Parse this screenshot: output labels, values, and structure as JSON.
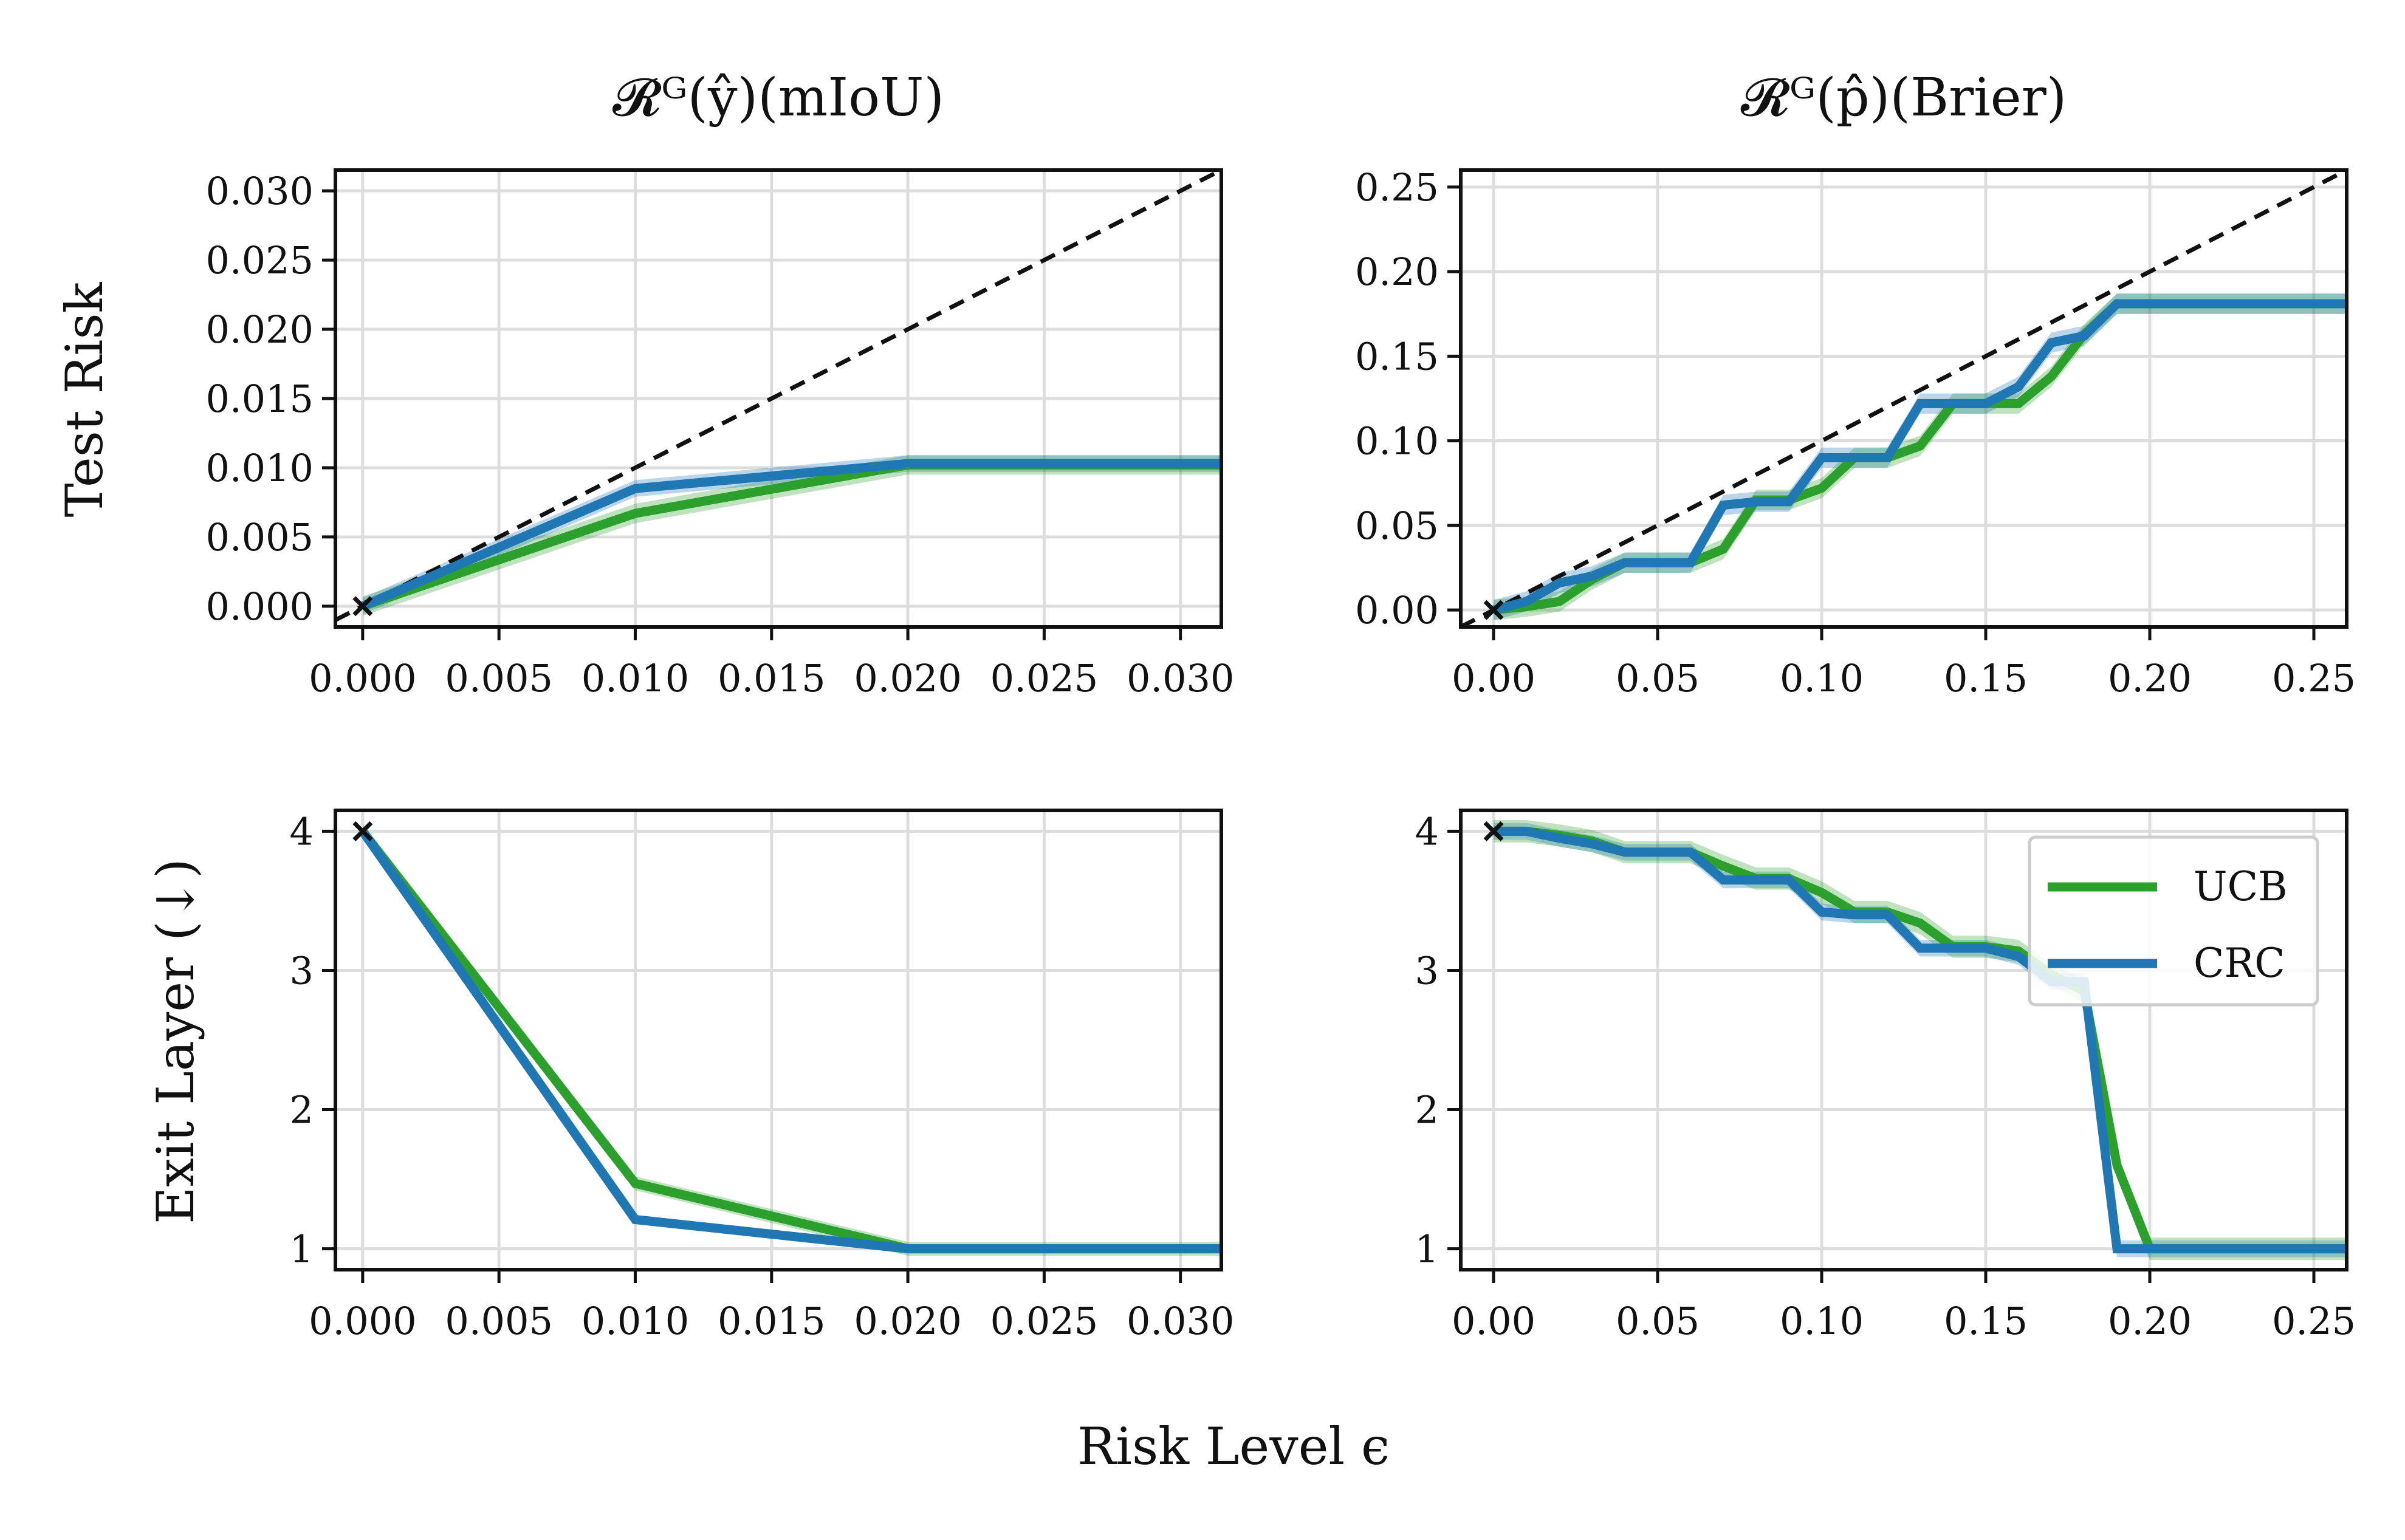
{
  "figure": {
    "ylabel_top": "Test Risk",
    "ylabel_bottom": "Exit Layer (↓)",
    "xlabel": "Risk Level ϵ"
  },
  "legend": {
    "placement": "top-right of bottom-right panel",
    "entries": [
      {
        "label": "UCB",
        "color": "#2ca02c"
      },
      {
        "label": "CRC",
        "color": "#1f77b4"
      }
    ]
  },
  "chart_data": [
    {
      "id": "tl",
      "type": "line",
      "title": "𝓡ᴳ(ŷ)(mIoU)",
      "xlabel": "Risk Level ϵ",
      "ylabel": "Test Risk",
      "xlim": [
        -0.001,
        0.0315
      ],
      "ylim": [
        -0.0015,
        0.0315
      ],
      "xticks": [
        0,
        0.005,
        0.01,
        0.015,
        0.02,
        0.025,
        0.03
      ],
      "xtick_labels": [
        "0.000",
        "0.005",
        "0.010",
        "0.015",
        "0.020",
        "0.025",
        "0.030"
      ],
      "yticks": [
        0,
        0.005,
        0.01,
        0.015,
        0.02,
        0.025,
        0.03
      ],
      "ytick_labels": [
        "0.000",
        "0.005",
        "0.010",
        "0.015",
        "0.020",
        "0.025",
        "0.030"
      ],
      "grid": true,
      "reference_diagonal": true,
      "origin_marker": {
        "x": 0,
        "y": 0
      },
      "series": [
        {
          "name": "UCB",
          "color": "#2ca02c",
          "x": [
            0,
            0.01,
            0.02,
            0.0315
          ],
          "y": [
            0,
            0.0067,
            0.0102,
            0.0102
          ],
          "band": 0.0007
        },
        {
          "name": "CRC",
          "color": "#1f77b4",
          "x": [
            0,
            0.01,
            0.02,
            0.0315
          ],
          "y": [
            0,
            0.0085,
            0.0103,
            0.0103
          ],
          "band": 0.0006
        }
      ]
    },
    {
      "id": "tr",
      "type": "line",
      "title": "𝓡ᴳ(p̂)(Brier)",
      "xlabel": "Risk Level ϵ",
      "ylabel": "Test Risk",
      "xlim": [
        -0.01,
        0.26
      ],
      "ylim": [
        -0.01,
        0.26
      ],
      "xticks": [
        0,
        0.05,
        0.1,
        0.15,
        0.2,
        0.25
      ],
      "xtick_labels": [
        "0.00",
        "0.05",
        "0.10",
        "0.15",
        "0.20",
        "0.25"
      ],
      "yticks": [
        0,
        0.05,
        0.1,
        0.15,
        0.2,
        0.25
      ],
      "ytick_labels": [
        "0.00",
        "0.05",
        "0.10",
        "0.15",
        "0.20",
        "0.25"
      ],
      "grid": true,
      "reference_diagonal": true,
      "origin_marker": {
        "x": 0,
        "y": 0
      },
      "series": [
        {
          "name": "UCB",
          "color": "#2ca02c",
          "x": [
            0,
            0.01,
            0.02,
            0.03,
            0.04,
            0.05,
            0.06,
            0.07,
            0.08,
            0.09,
            0.1,
            0.11,
            0.12,
            0.13,
            0.14,
            0.15,
            0.16,
            0.17,
            0.18,
            0.19,
            0.2,
            0.26
          ],
          "y": [
            0,
            0.002,
            0.005,
            0.018,
            0.028,
            0.028,
            0.028,
            0.036,
            0.065,
            0.065,
            0.072,
            0.09,
            0.09,
            0.097,
            0.122,
            0.122,
            0.122,
            0.138,
            0.163,
            0.181,
            0.181,
            0.181
          ],
          "band": 0.006
        },
        {
          "name": "CRC",
          "color": "#1f77b4",
          "x": [
            0,
            0.01,
            0.02,
            0.03,
            0.04,
            0.05,
            0.06,
            0.07,
            0.08,
            0.09,
            0.1,
            0.11,
            0.12,
            0.13,
            0.14,
            0.15,
            0.16,
            0.17,
            0.18,
            0.19,
            0.2,
            0.26
          ],
          "y": [
            0,
            0.005,
            0.016,
            0.02,
            0.028,
            0.028,
            0.028,
            0.062,
            0.064,
            0.064,
            0.09,
            0.09,
            0.09,
            0.122,
            0.122,
            0.122,
            0.132,
            0.158,
            0.162,
            0.181,
            0.181,
            0.181
          ],
          "band": 0.006
        }
      ]
    },
    {
      "id": "bl",
      "type": "line",
      "title": "",
      "xlabel": "Risk Level ϵ",
      "ylabel": "Exit Layer (↓)",
      "xlim": [
        -0.001,
        0.0315
      ],
      "ylim": [
        0.85,
        4.15
      ],
      "xticks": [
        0,
        0.005,
        0.01,
        0.015,
        0.02,
        0.025,
        0.03
      ],
      "xtick_labels": [
        "0.000",
        "0.005",
        "0.010",
        "0.015",
        "0.020",
        "0.025",
        "0.030"
      ],
      "yticks": [
        1,
        2,
        3,
        4
      ],
      "ytick_labels": [
        "1",
        "2",
        "3",
        "4"
      ],
      "grid": true,
      "reference_diagonal": false,
      "origin_marker": {
        "x": 0,
        "y": 4
      },
      "series": [
        {
          "name": "UCB",
          "color": "#2ca02c",
          "x": [
            0,
            0.01,
            0.02,
            0.0315
          ],
          "y": [
            4,
            1.47,
            1.0,
            1.0
          ],
          "band": 0.05
        },
        {
          "name": "CRC",
          "color": "#1f77b4",
          "x": [
            0,
            0.01,
            0.02,
            0.0315
          ],
          "y": [
            4,
            1.21,
            1.0,
            1.0
          ],
          "band": 0.03
        }
      ]
    },
    {
      "id": "br",
      "type": "line",
      "title": "",
      "xlabel": "Risk Level ϵ",
      "ylabel": "Exit Layer (↓)",
      "xlim": [
        -0.01,
        0.26
      ],
      "ylim": [
        0.85,
        4.15
      ],
      "xticks": [
        0,
        0.05,
        0.1,
        0.15,
        0.2,
        0.25
      ],
      "xtick_labels": [
        "0.00",
        "0.05",
        "0.10",
        "0.15",
        "0.20",
        "0.25"
      ],
      "yticks": [
        1,
        2,
        3,
        4
      ],
      "ytick_labels": [
        "1",
        "2",
        "3",
        "4"
      ],
      "grid": true,
      "reference_diagonal": false,
      "origin_marker": {
        "x": 0,
        "y": 4
      },
      "series": [
        {
          "name": "UCB",
          "color": "#2ca02c",
          "x": [
            0,
            0.01,
            0.02,
            0.03,
            0.04,
            0.05,
            0.06,
            0.07,
            0.08,
            0.09,
            0.1,
            0.11,
            0.12,
            0.13,
            0.14,
            0.15,
            0.16,
            0.17,
            0.18,
            0.19,
            0.2,
            0.26
          ],
          "y": [
            4,
            4,
            3.97,
            3.93,
            3.85,
            3.85,
            3.85,
            3.75,
            3.66,
            3.66,
            3.56,
            3.42,
            3.42,
            3.34,
            3.17,
            3.17,
            3.14,
            2.97,
            2.85,
            1.6,
            1.0,
            1.0
          ],
          "band": 0.08
        },
        {
          "name": "CRC",
          "color": "#1f77b4",
          "x": [
            0,
            0.01,
            0.02,
            0.03,
            0.04,
            0.05,
            0.06,
            0.07,
            0.08,
            0.09,
            0.1,
            0.11,
            0.12,
            0.13,
            0.14,
            0.15,
            0.16,
            0.17,
            0.18,
            0.19,
            0.2,
            0.26
          ],
          "y": [
            4,
            4,
            3.95,
            3.91,
            3.85,
            3.85,
            3.85,
            3.65,
            3.65,
            3.65,
            3.42,
            3.4,
            3.4,
            3.16,
            3.16,
            3.16,
            3.1,
            2.92,
            2.92,
            1.0,
            1.0,
            1.0
          ],
          "band": 0.06
        }
      ]
    }
  ]
}
